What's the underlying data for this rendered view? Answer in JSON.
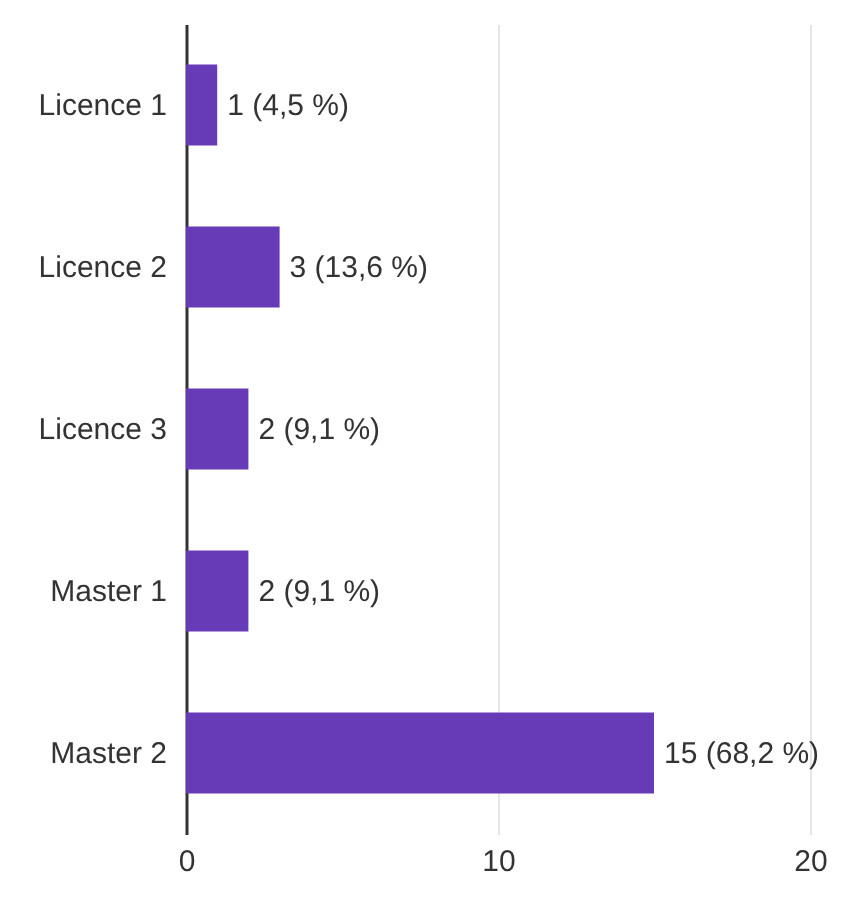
{
  "chart_data": {
    "type": "bar",
    "orientation": "horizontal",
    "categories": [
      "Licence 1",
      "Licence 2",
      "Licence 3",
      "Master 1",
      "Master 2"
    ],
    "values": [
      1,
      3,
      2,
      2,
      15
    ],
    "color": "#673ab7",
    "value_labels": [
      "1 (4,5 %)",
      "3 (13,6 %)",
      "2 (9,1 %)",
      "2 (9,1 %)",
      "15 (68,2 %)"
    ],
    "xlim": [
      0,
      20
    ],
    "xticks": [
      0,
      10,
      20
    ],
    "grid": "x"
  }
}
